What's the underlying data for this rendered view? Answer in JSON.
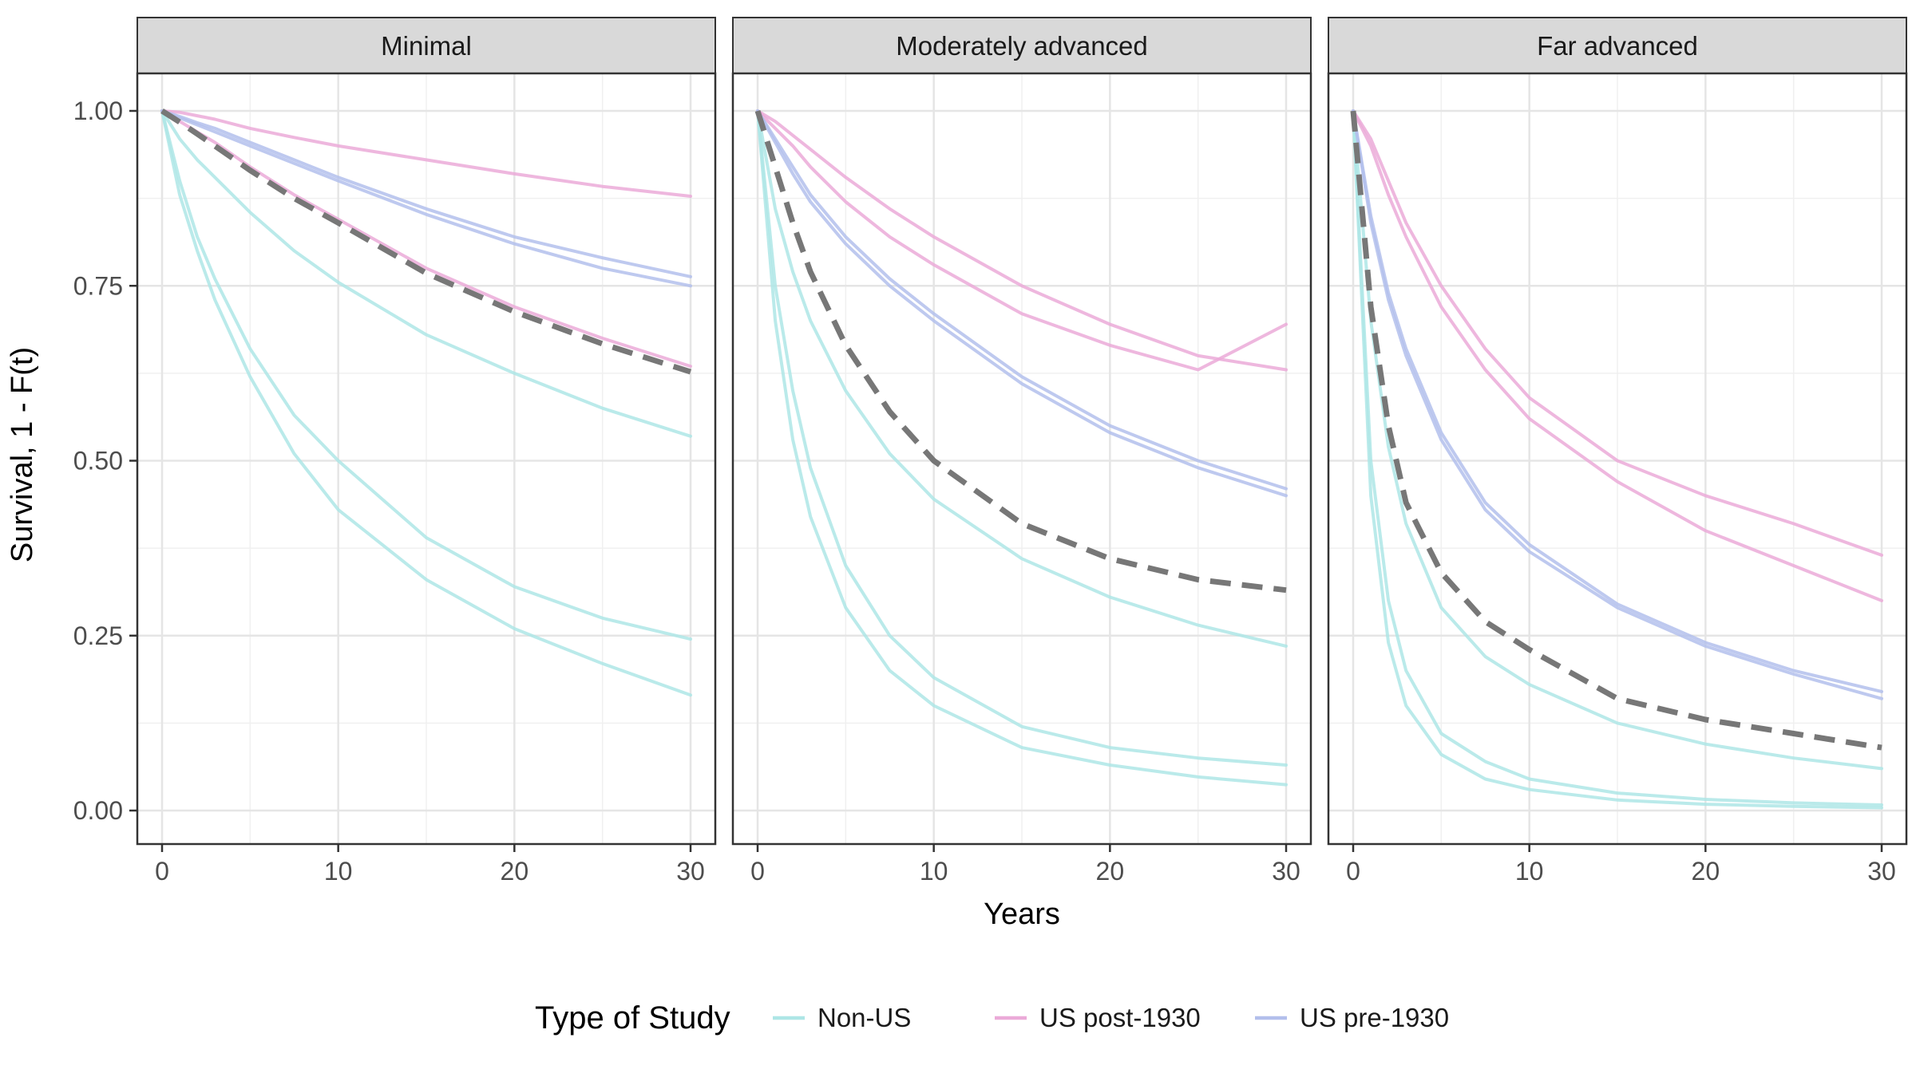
{
  "chart_data": {
    "type": "line",
    "xlabel": "Years",
    "ylabel": "Survival, 1 - F(t)",
    "xlim": [
      0,
      30
    ],
    "ylim": [
      0,
      1
    ],
    "x_ticks": [
      0,
      10,
      20,
      30
    ],
    "y_ticks": [
      0.0,
      0.25,
      0.5,
      0.75,
      1.0
    ],
    "y_tick_labels": [
      "0.00",
      "0.25",
      "0.50",
      "0.75",
      "1.00"
    ],
    "x_tick_labels": [
      "0",
      "10",
      "20",
      "30"
    ],
    "grid": true,
    "legend": {
      "title": "Type of Study",
      "placement": "bottom",
      "entries": [
        {
          "label": "Non-US",
          "color": "#AEE6E6"
        },
        {
          "label": "US post-1930",
          "color": "#EBAAD8"
        },
        {
          "label": "US pre-1930",
          "color": "#B3BFEC"
        }
      ]
    },
    "colors": {
      "Non-US": "#AEE6E6",
      "US post-1930": "#EBAAD8",
      "US pre-1930": "#B3BFEC",
      "pooled": "#777777"
    },
    "x": [
      0,
      1,
      2,
      3,
      5,
      7.5,
      10,
      15,
      20,
      25,
      30
    ],
    "panels": [
      {
        "title": "Minimal",
        "series": [
          {
            "group": "Non-US",
            "values": [
              1.0,
              0.96,
              0.93,
              0.905,
              0.855,
              0.8,
              0.755,
              0.68,
              0.625,
              0.575,
              0.535
            ]
          },
          {
            "group": "Non-US",
            "values": [
              1.0,
              0.88,
              0.8,
              0.73,
              0.62,
              0.51,
              0.43,
              0.33,
              0.26,
              0.21,
              0.165
            ]
          },
          {
            "group": "Non-US",
            "values": [
              1.0,
              0.9,
              0.82,
              0.76,
              0.66,
              0.565,
              0.5,
              0.39,
              0.32,
              0.275,
              0.245
            ]
          },
          {
            "group": "US post-1930",
            "values": [
              1.0,
              0.998,
              0.993,
              0.988,
              0.975,
              0.962,
              0.95,
              0.93,
              0.91,
              0.892,
              0.878
            ]
          },
          {
            "group": "US post-1930",
            "values": [
              1.0,
              0.985,
              0.97,
              0.955,
              0.92,
              0.88,
              0.845,
              0.775,
              0.72,
              0.675,
              0.635
            ]
          },
          {
            "group": "US pre-1930",
            "values": [
              1.0,
              0.992,
              0.983,
              0.975,
              0.955,
              0.93,
              0.905,
              0.86,
              0.82,
              0.79,
              0.763
            ]
          },
          {
            "group": "US pre-1930",
            "values": [
              1.0,
              0.99,
              0.98,
              0.97,
              0.95,
              0.925,
              0.9,
              0.852,
              0.81,
              0.775,
              0.75
            ]
          },
          {
            "group": "pooled",
            "values": [
              1.0,
              0.984,
              0.967,
              0.95,
              0.915,
              0.875,
              0.84,
              0.768,
              0.713,
              0.667,
              0.627
            ]
          }
        ]
      },
      {
        "title": "Moderately advanced",
        "series": [
          {
            "group": "Non-US",
            "values": [
              1.0,
              0.86,
              0.77,
              0.7,
              0.6,
              0.51,
              0.445,
              0.36,
              0.305,
              0.265,
              0.235
            ]
          },
          {
            "group": "Non-US",
            "values": [
              1.0,
              0.75,
              0.6,
              0.49,
              0.35,
              0.25,
              0.19,
              0.12,
              0.09,
              0.075,
              0.065
            ]
          },
          {
            "group": "Non-US",
            "values": [
              1.0,
              0.7,
              0.53,
              0.42,
              0.29,
              0.2,
              0.15,
              0.09,
              0.065,
              0.048,
              0.037
            ]
          },
          {
            "group": "US post-1930",
            "values": [
              1.0,
              0.985,
              0.965,
              0.945,
              0.905,
              0.86,
              0.82,
              0.75,
              0.695,
              0.65,
              0.63
            ]
          },
          {
            "group": "US post-1930",
            "values": [
              1.0,
              0.975,
              0.95,
              0.92,
              0.87,
              0.82,
              0.78,
              0.71,
              0.665,
              0.63,
              0.695
            ]
          },
          {
            "group": "US pre-1930",
            "values": [
              1.0,
              0.96,
              0.92,
              0.88,
              0.82,
              0.76,
              0.71,
              0.62,
              0.55,
              0.5,
              0.46
            ]
          },
          {
            "group": "US pre-1930",
            "values": [
              1.0,
              0.955,
              0.91,
              0.87,
              0.81,
              0.75,
              0.7,
              0.61,
              0.54,
              0.49,
              0.45
            ]
          },
          {
            "group": "pooled",
            "values": [
              1.0,
              0.92,
              0.84,
              0.77,
              0.665,
              0.57,
              0.5,
              0.41,
              0.36,
              0.33,
              0.315
            ]
          }
        ]
      },
      {
        "title": "Far advanced",
        "series": [
          {
            "group": "Non-US",
            "values": [
              1.0,
              0.7,
              0.52,
              0.41,
              0.29,
              0.22,
              0.18,
              0.125,
              0.095,
              0.075,
              0.06
            ]
          },
          {
            "group": "Non-US",
            "values": [
              1.0,
              0.5,
              0.3,
              0.2,
              0.11,
              0.07,
              0.045,
              0.025,
              0.016,
              0.011,
              0.008
            ]
          },
          {
            "group": "Non-US",
            "values": [
              1.0,
              0.45,
              0.24,
              0.15,
              0.08,
              0.045,
              0.03,
              0.015,
              0.009,
              0.006,
              0.004
            ]
          },
          {
            "group": "US post-1930",
            "values": [
              1.0,
              0.96,
              0.9,
              0.84,
              0.75,
              0.66,
              0.59,
              0.5,
              0.45,
              0.41,
              0.365
            ]
          },
          {
            "group": "US post-1930",
            "values": [
              1.0,
              0.95,
              0.88,
              0.82,
              0.72,
              0.63,
              0.56,
              0.47,
              0.4,
              0.35,
              0.3
            ]
          },
          {
            "group": "US pre-1930",
            "values": [
              1.0,
              0.85,
              0.74,
              0.66,
              0.54,
              0.44,
              0.38,
              0.295,
              0.24,
              0.2,
              0.17
            ]
          },
          {
            "group": "US pre-1930",
            "values": [
              1.0,
              0.84,
              0.73,
              0.65,
              0.53,
              0.43,
              0.37,
              0.29,
              0.235,
              0.195,
              0.16
            ]
          },
          {
            "group": "pooled",
            "values": [
              1.0,
              0.72,
              0.55,
              0.44,
              0.34,
              0.27,
              0.23,
              0.16,
              0.13,
              0.11,
              0.09
            ]
          }
        ]
      }
    ]
  }
}
